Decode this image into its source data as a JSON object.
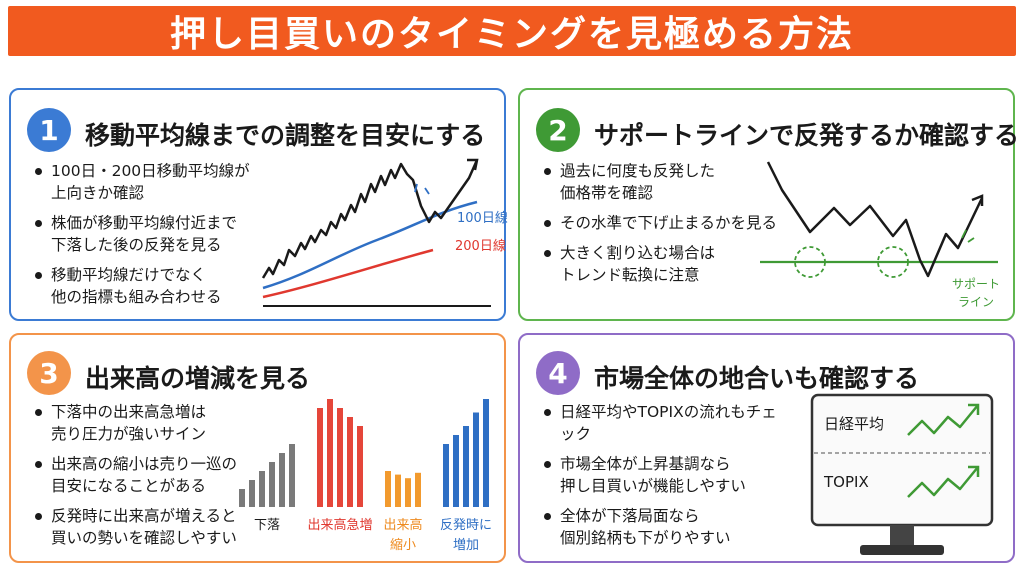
{
  "header": {
    "title": "押し目買いのタイミングを見極める方法"
  },
  "cards": [
    {
      "number": "1",
      "title": "移動平均線までの調整を目安にする",
      "color": "#3b7bd4",
      "bullets": [
        [
          "100日・200日移動平均線が",
          "上向きか確認"
        ],
        [
          "株価が移動平均線付近まで",
          "下落した後の反発を見る"
        ],
        [
          "移動平均線だけでなく",
          "他の指標も組み合わせる"
        ]
      ],
      "chart_labels": {
        "ma100": "100日線",
        "ma200": "200日線"
      },
      "line_colors": {
        "price": "#1a1a1a",
        "ma100": "#2f6fc4",
        "ma200": "#e0382f"
      }
    },
    {
      "number": "2",
      "title": "サポートラインで反発するか確認する",
      "color": "#3f9a35",
      "bullets": [
        [
          "過去に何度も反発した",
          "価格帯を確認"
        ],
        [
          "その水準で下げ止まるかを見る"
        ],
        [
          "大きく割り込む場合は",
          "トレンド転換に注意"
        ]
      ],
      "support_label": [
        "サポート",
        "ライン"
      ],
      "line_colors": {
        "support": "#3f9a35"
      }
    },
    {
      "number": "3",
      "title": "出来高の増減を見る",
      "color": "#f3944a",
      "bullets": [
        [
          "下落中の出来高急増は",
          "売り圧力が強いサイン"
        ],
        [
          "出来高の縮小は売り一巡の",
          "目安になることがある"
        ],
        [
          "反発時に出来高が増えると",
          "買いの勢いを確認しやすい"
        ]
      ],
      "bar_groups": [
        {
          "label": [
            "下落"
          ],
          "color": "#7a7a7a",
          "label_color": "#1a1a1a",
          "values": [
            2,
            3,
            4,
            5,
            6,
            7
          ]
        },
        {
          "label": [
            "出来高急増"
          ],
          "color": "#e5463a",
          "label_color": "#e0382f",
          "values": [
            11,
            12,
            11,
            10,
            9
          ]
        },
        {
          "label": [
            "出来高",
            "縮小"
          ],
          "color": "#f29a2e",
          "label_color": "#ee8a1e",
          "values": [
            4,
            3.6,
            3.2,
            3.8
          ]
        },
        {
          "label": [
            "反発時に",
            "増加"
          ],
          "color": "#2f6fc4",
          "label_color": "#2f6fc4",
          "values": [
            7,
            8,
            9,
            10.5,
            12
          ]
        }
      ]
    },
    {
      "number": "4",
      "title": "市場全体の地合いも確認する",
      "color": "#8f6cc7",
      "bullets": [
        [
          "日経平均やTOPIXの流れもチェック"
        ],
        [
          "市場全体が上昇基調なら",
          "押し目買いが機能しやすい"
        ],
        [
          "全体が下落局面なら",
          "個別銘柄も下がりやすい"
        ]
      ],
      "monitor": {
        "label_top": "日経平均",
        "label_bottom": "TOPIX",
        "arrow_color": "#3f9a35"
      }
    }
  ]
}
